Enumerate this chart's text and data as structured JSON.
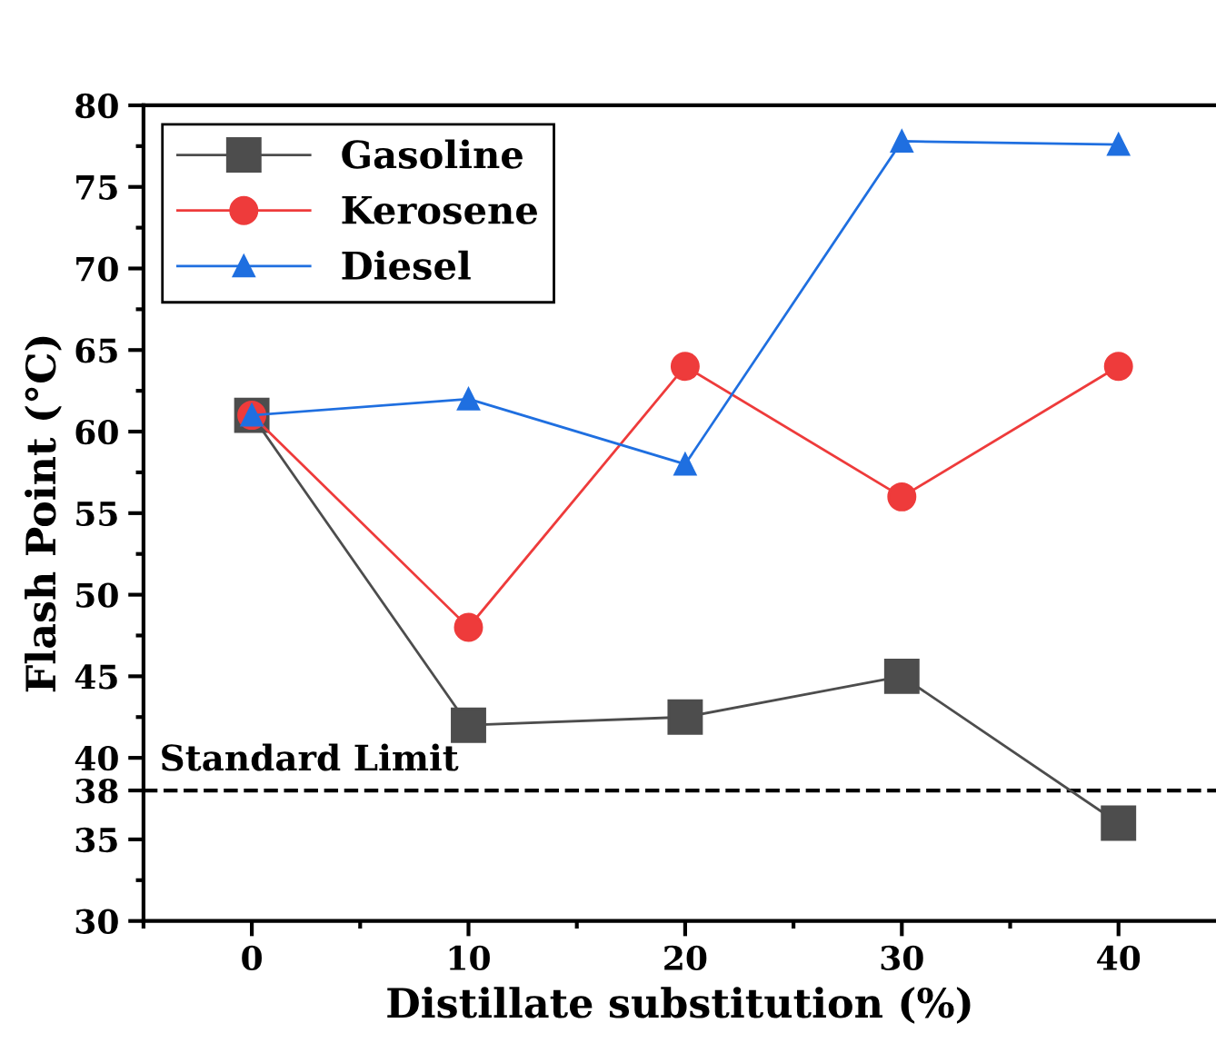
{
  "chart_data": {
    "type": "line",
    "xlabel": "Distillate substitution (%)",
    "ylabel": "Flash Point (°C)",
    "x": [
      0,
      10,
      20,
      30,
      40
    ],
    "series": [
      {
        "name": "Gasoline",
        "color": "#4d4d4d",
        "marker": "square",
        "values": [
          61,
          42,
          42.5,
          45,
          36
        ]
      },
      {
        "name": "Kerosene",
        "color": "#ee3b3b",
        "marker": "circle",
        "values": [
          61,
          48,
          64,
          56,
          64
        ]
      },
      {
        "name": "Diesel",
        "color": "#1f6fe0",
        "marker": "triangle",
        "values": [
          61,
          62,
          58,
          77.8,
          77.6
        ]
      }
    ],
    "xlim": [
      -5,
      44.5
    ],
    "ylim": [
      30,
      80
    ],
    "xticks": [
      {
        "value": -5,
        "label": null
      },
      0,
      {
        "value": 5,
        "label": null
      },
      10,
      {
        "value": 15,
        "label": null
      },
      20,
      {
        "value": 25,
        "label": null
      },
      30,
      {
        "value": 35,
        "label": null
      },
      40
    ],
    "yticks": [
      30,
      {
        "value": 32.5,
        "label": null
      },
      35,
      38,
      40,
      {
        "value": 42.5,
        "label": null
      },
      45,
      {
        "value": 47.5,
        "label": null
      },
      50,
      {
        "value": 52.5,
        "label": null
      },
      55,
      {
        "value": 57.5,
        "label": null
      },
      60,
      {
        "value": 62.5,
        "label": null
      },
      65,
      {
        "value": 67.5,
        "label": null
      },
      70,
      {
        "value": 72.5,
        "label": null
      },
      75,
      {
        "value": 77.5,
        "label": null
      },
      80
    ],
    "ref_lines": [
      {
        "axis": "y",
        "value": 38,
        "label": "Standard Limit",
        "color": "#000000",
        "line_style": "dashed"
      }
    ],
    "legend": "top left",
    "grid": false,
    "line_style": "solid"
  }
}
